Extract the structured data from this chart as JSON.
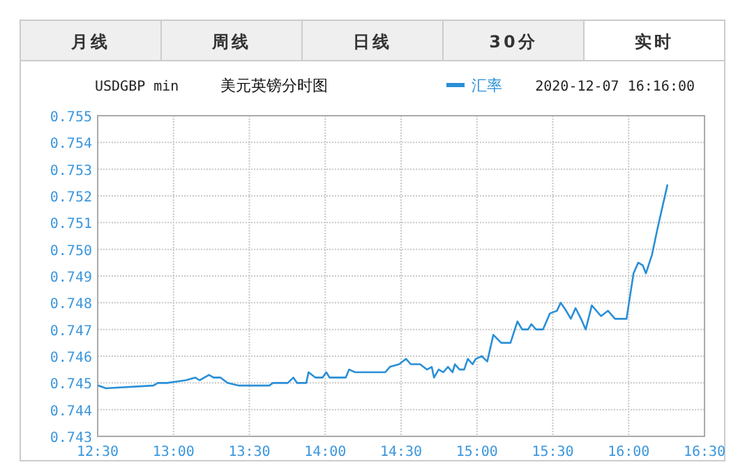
{
  "chart_data": {
    "type": "line",
    "title": "美元英镑分时图",
    "subtitle": "USDGBP min",
    "annotations": [
      "月线",
      "周线",
      "日线",
      "30分",
      "实时",
      "2020-12-07 16:16:00"
    ],
    "legend": "top",
    "grid": true,
    "line_style": "solid",
    "marker": "none",
    "xlim": [
      12.5,
      16.5
    ],
    "xticks": [
      {
        "value": 12.5,
        "label": "12:30"
      },
      {
        "value": 13,
        "label": "13:00"
      },
      {
        "value": 13.5,
        "label": "13:30"
      },
      {
        "value": 14,
        "label": "14:00"
      },
      {
        "value": 14.5,
        "label": "14:30"
      },
      {
        "value": 15,
        "label": "15:00"
      },
      {
        "value": 15.5,
        "label": "15:30"
      },
      {
        "value": 16,
        "label": "16:00"
      },
      {
        "value": 16.5,
        "label": "16:30"
      }
    ],
    "ylim": [
      0.743,
      0.755
    ],
    "yticks": [
      {
        "value": 0.743,
        "label": "0.743"
      },
      {
        "value": 0.744,
        "label": "0.744"
      },
      {
        "value": 0.745,
        "label": "0.745"
      },
      {
        "value": 0.746,
        "label": "0.746"
      },
      {
        "value": 0.747,
        "label": "0.747"
      },
      {
        "value": 0.748,
        "label": "0.748"
      },
      {
        "value": 0.749,
        "label": "0.749"
      },
      {
        "value": 0.75,
        "label": "0.750"
      },
      {
        "value": 0.751,
        "label": "0.751"
      },
      {
        "value": 0.752,
        "label": "0.752"
      },
      {
        "value": 0.753,
        "label": "0.753"
      },
      {
        "value": 0.754,
        "label": "0.754"
      },
      {
        "value": 0.755,
        "label": "0.755"
      }
    ],
    "series": [
      {
        "name": "汇率",
        "color": "#2a8fd6",
        "x": [
          12.506,
          12.555,
          12.867,
          12.897,
          12.958,
          13.081,
          13.142,
          13.172,
          13.234,
          13.264,
          13.31,
          13.356,
          13.432,
          13.631,
          13.655,
          13.692,
          13.753,
          13.79,
          13.814,
          13.875,
          13.89,
          13.936,
          13.982,
          14.007,
          14.028,
          14.135,
          14.157,
          14.197,
          14.243,
          14.396,
          14.426,
          14.487,
          14.533,
          14.564,
          14.625,
          14.671,
          14.702,
          14.717,
          14.748,
          14.778,
          14.809,
          14.839,
          14.855,
          14.885,
          14.916,
          14.94,
          14.971,
          14.992,
          15.032,
          15.068,
          15.108,
          15.16,
          15.221,
          15.267,
          15.298,
          15.337,
          15.359,
          15.389,
          15.435,
          15.481,
          15.527,
          15.552,
          15.588,
          15.619,
          15.65,
          15.686,
          15.717,
          15.757,
          15.818,
          15.864,
          15.91,
          15.986,
          16.032,
          16.063,
          16.093,
          16.114,
          16.154,
          16.191,
          16.231,
          16.255
        ],
        "values": [
          0.7449,
          0.7448,
          0.7449,
          0.745,
          0.745,
          0.7451,
          0.7452,
          0.7451,
          0.7453,
          0.7452,
          0.7452,
          0.745,
          0.7449,
          0.7449,
          0.745,
          0.745,
          0.745,
          0.7452,
          0.745,
          0.745,
          0.7454,
          0.7452,
          0.7452,
          0.7454,
          0.7452,
          0.7452,
          0.7455,
          0.7454,
          0.7454,
          0.7454,
          0.7456,
          0.7457,
          0.7459,
          0.7457,
          0.7457,
          0.7455,
          0.7456,
          0.7452,
          0.7455,
          0.7454,
          0.7456,
          0.7454,
          0.7457,
          0.7455,
          0.7455,
          0.7459,
          0.7457,
          0.7459,
          0.746,
          0.7458,
          0.7468,
          0.7465,
          0.7465,
          0.7473,
          0.747,
          0.747,
          0.7472,
          0.747,
          0.747,
          0.7476,
          0.7477,
          0.748,
          0.7477,
          0.7474,
          0.7478,
          0.7474,
          0.747,
          0.7479,
          0.7475,
          0.7477,
          0.7474,
          0.7474,
          0.7491,
          0.7495,
          0.7494,
          0.7491,
          0.7498,
          0.7508,
          0.7518,
          0.7524
        ]
      }
    ]
  }
}
